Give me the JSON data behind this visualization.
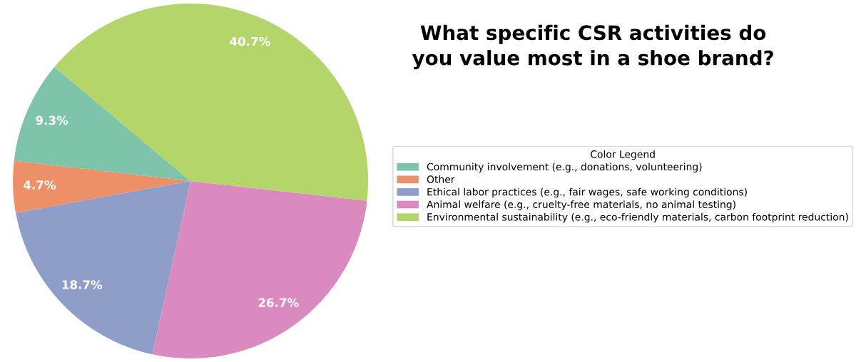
{
  "chart_data": {
    "type": "pie",
    "title": "What specific CSR activities do\nyou value most in a shoe brand?",
    "legend_title": "Color Legend",
    "categories": [
      "Community involvement (e.g., donations, volunteering)",
      "Other",
      "Ethical labor practices (e.g., fair wages, safe working conditions)",
      "Animal welfare (e.g., cruelty-free materials, no animal testing)",
      "Environmental sustainability (e.g., eco-friendly materials, carbon footprint reduction)"
    ],
    "values": [
      9.3,
      4.7,
      18.7,
      26.7,
      40.7
    ],
    "colors": [
      "#7dc4aa",
      "#ec9068",
      "#8f9ec8",
      "#da8abf",
      "#b3d56a"
    ],
    "value_labels": [
      "9.3%",
      "4.7%",
      "18.7%",
      "26.7%",
      "40.7%"
    ],
    "legend": "right"
  }
}
